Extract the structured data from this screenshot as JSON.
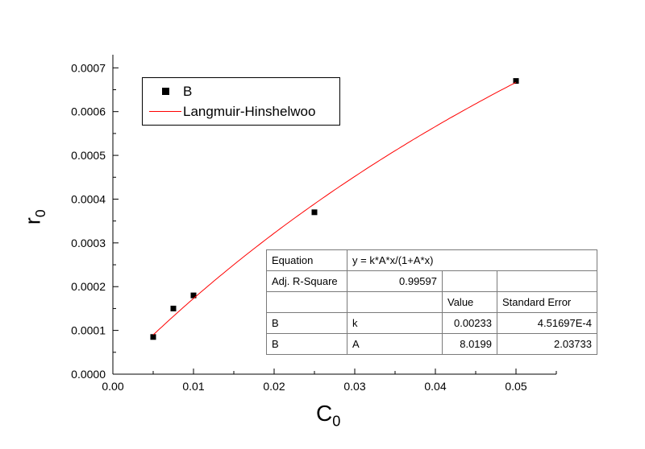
{
  "chart_data": {
    "type": "scatter",
    "title": "",
    "xlabel": "C",
    "xlabel_sub": "0",
    "ylabel": "r",
    "ylabel_sub": "0",
    "xlim": [
      0,
      0.055
    ],
    "ylim": [
      0,
      0.00073
    ],
    "x_ticks": [
      0.0,
      0.01,
      0.02,
      0.03,
      0.04,
      0.05
    ],
    "x_tick_labels": [
      "0.00",
      "0.01",
      "0.02",
      "0.03",
      "0.04",
      "0.05"
    ],
    "y_ticks": [
      0.0,
      0.0001,
      0.0002,
      0.0003,
      0.0004,
      0.0005,
      0.0006,
      0.0007
    ],
    "y_tick_labels": [
      "0.0000",
      "0.0001",
      "0.0002",
      "0.0003",
      "0.0004",
      "0.0005",
      "0.0006",
      "0.0007"
    ],
    "grid": false,
    "series": [
      {
        "name": "B",
        "type": "scatter",
        "marker": "square",
        "color": "#000000",
        "x": [
          0.005,
          0.0075,
          0.01,
          0.025,
          0.05
        ],
        "y": [
          8.5e-05,
          0.00015,
          0.00018,
          0.00037,
          0.00067
        ]
      },
      {
        "name": "Langmuir-Hinshelwoo",
        "type": "line",
        "color": "#ff0000",
        "fit": {
          "equation": "y = k*A*x/(1+A*x)",
          "k": 0.00233,
          "A": 8.0199,
          "x_range": [
            0.005,
            0.05
          ]
        }
      }
    ],
    "legend": {
      "position": "top-left",
      "entries": [
        {
          "label": "B",
          "marker": "square",
          "color": "#000000"
        },
        {
          "label": "Langmuir-Hinshelwoo",
          "marker": "line",
          "color": "#ff0000"
        }
      ]
    }
  },
  "stats_table": {
    "r1c1": "Equation",
    "r1c2": "y = k*A*x/(1+A*x)",
    "r2c1": "Adj. R-Square",
    "r2c2": "0.99597",
    "r3c3": "Value",
    "r3c4": "Standard Error",
    "r4c1": "B",
    "r4c2": "k",
    "r4c3": "0.00233",
    "r4c4": "4.51697E-4",
    "r5c1": "B",
    "r5c2": "A",
    "r5c3": "8.0199",
    "r5c4": "2.03733"
  }
}
